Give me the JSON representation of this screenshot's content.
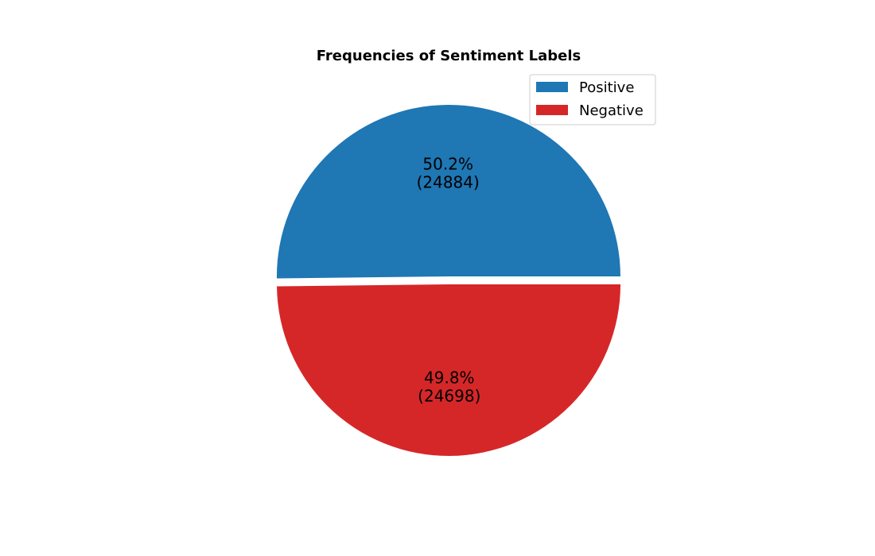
{
  "chart_data": {
    "type": "pie",
    "title": "Frequencies of Sentiment Labels",
    "slices": [
      {
        "label": "Positive",
        "value": 24884,
        "percent_label": "50.2%",
        "count_label": "(24884)",
        "color": "#1f77b4"
      },
      {
        "label": "Negative",
        "value": 24698,
        "percent_label": "49.8%",
        "count_label": "(24698)",
        "color": "#d62728"
      }
    ],
    "legend_placement": "top-right"
  }
}
